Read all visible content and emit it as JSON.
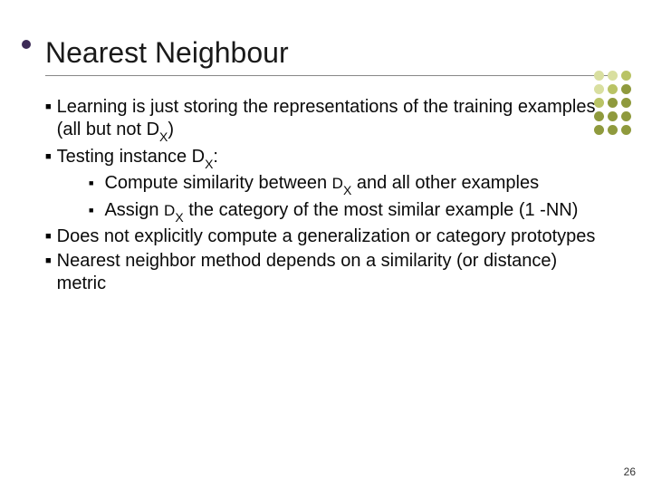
{
  "title": "Nearest Neighbour",
  "bullets": {
    "b1": "Learning is just storing the representations of the training examples (all but not D",
    "b1_sub": "X",
    "b1_tail": ")",
    "b2": "Testing instance D",
    "b2_sub": "X",
    "b2_tail": ":",
    "b2a_pre": "Compute similarity between ",
    "b2a_D": "D",
    "b2a_sub": "X",
    "b2a_post": " and all other examples",
    "b2b_pre": "Assign ",
    "b2b_D": "D",
    "b2b_sub": "X",
    "b2b_post": " the category of the most similar example (1 -NN)",
    "b3": "Does not explicitly compute a generalization or category prototypes",
    "b4": "Nearest neighbor method depends on a similarity (or distance) metric"
  },
  "page_number": "26",
  "colors": {
    "title_accent": "#3c2a56",
    "dot_grid": [
      "#d9dfa0",
      "#d9dfa0",
      "#b9c365",
      "#d9dfa0",
      "#b9c365",
      "#8f9a3d",
      "#b9c365",
      "#8f9a3d",
      "#8f9a3d",
      "#8f9a3d",
      "#8f9a3d",
      "#8f9a3d",
      "#8f9a3d",
      "#8f9a3d",
      "#8f9a3d"
    ],
    "text": "#0a0a0a",
    "divider": "#888888",
    "background": "#ffffff"
  }
}
